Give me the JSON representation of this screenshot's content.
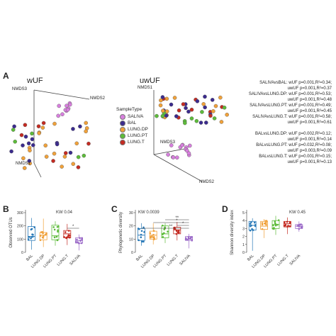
{
  "panel_a": {
    "letter": "A",
    "wuf": {
      "title": "wUF",
      "axis1": "NMDS1",
      "axis2": "NMDS2",
      "axis3": "NMDS3"
    },
    "uwuf": {
      "title": "uwUF",
      "axis1": "NMDS1",
      "axis2": "NMDS2",
      "axis3": "NMDS3"
    },
    "legend": {
      "title": "SampleType",
      "items": [
        {
          "label": "SALIVA",
          "color": "#d77fdd"
        },
        {
          "label": "BAL",
          "color": "#3b2b8e"
        },
        {
          "label": "LUNG.DP",
          "color": "#f0a13a"
        },
        {
          "label": "LUNG.PT",
          "color": "#5dbb3a"
        },
        {
          "label": "LUNG.T",
          "color": "#c42b22"
        }
      ]
    },
    "stats": [
      "SALIVAvsBAL: wUF p=0.001,R²=0.34;",
      "uwUF p=0.001,R²=0.37",
      "SALIVAvsLUNG.DP: wUF p=0.001,R²=0.53;",
      "uwUF p=0.001,R²=0.48",
      "SALIVAvsLUNG.PT: wUF p=0.001,R²=0.49;",
      "uwUF p=0.001,R²=0.45",
      "SALIVAvsLUNG.T: wUF p=0.001,R²=0.58;",
      "uwUF p=0.001,R²=0.61",
      "",
      "BALvsLUNG.DP: wUF p=0.002,R²=0.12;",
      "uwUF p=0.001,R²=0.14",
      "BALvsLUNG.PT: wUF p=0.032,R²=0.08;",
      "uwUF p=0.003,R²=0.09",
      "BALvsLUNG.T: wUF p=0.001,R²=0.15;",
      "uwUF p=0.001,R²=0.13"
    ]
  },
  "chart_data": [
    {
      "type": "box",
      "panel": "B",
      "ylabel": "Observed OTUs",
      "annotation": "KW 0.04",
      "categories": [
        "BAL",
        "LUNG.DP",
        "LUNG.PT",
        "LUNG.T",
        "SALIVA"
      ],
      "colors": [
        "#2a7ab8",
        "#f0a13a",
        "#5dbb3a",
        "#c42b22",
        "#9b6ac8"
      ],
      "ylim": [
        0,
        300
      ],
      "yticks": [
        0,
        100,
        200,
        300
      ],
      "boxes": [
        {
          "min": 20,
          "q1": 90,
          "median": 120,
          "q3": 195,
          "max": 260
        },
        {
          "min": 40,
          "q1": 95,
          "median": 130,
          "q3": 150,
          "max": 255
        },
        {
          "min": 50,
          "q1": 95,
          "median": 125,
          "q3": 205,
          "max": 235
        },
        {
          "min": 55,
          "q1": 110,
          "median": 140,
          "q3": 165,
          "max": 215
        },
        {
          "min": 15,
          "q1": 70,
          "median": 90,
          "q3": 110,
          "max": 135
        }
      ],
      "brackets": [
        {
          "from": 3,
          "to": 4,
          "label": "*"
        }
      ]
    },
    {
      "type": "box",
      "panel": "C",
      "ylabel": "Phylogenetic diversity",
      "annotation": "KW 0.0039",
      "categories": [
        "BAL",
        "LUNG.DP",
        "LUNG.PT",
        "LUNG.T",
        "SALIVA"
      ],
      "colors": [
        "#2a7ab8",
        "#f0a13a",
        "#5dbb3a",
        "#c42b22",
        "#9b6ac8"
      ],
      "ylim": [
        0,
        30
      ],
      "yticks": [
        0,
        10,
        20,
        30
      ],
      "boxes": [
        {
          "min": 5,
          "q1": 9,
          "median": 13,
          "q3": 18,
          "max": 22
        },
        {
          "min": 6,
          "q1": 10,
          "median": 13,
          "q3": 16,
          "max": 22
        },
        {
          "min": 7,
          "q1": 11,
          "median": 14,
          "q3": 20,
          "max": 22
        },
        {
          "min": 9,
          "q1": 14,
          "median": 17,
          "q3": 19,
          "max": 23
        },
        {
          "min": 3,
          "q1": 9,
          "median": 10,
          "q3": 12,
          "max": 14
        }
      ],
      "brackets": [
        {
          "from": 2,
          "to": 4,
          "label": "**"
        },
        {
          "from": 1,
          "to": 4,
          "label": "*"
        },
        {
          "from": 3,
          "to": 4,
          "label": "*"
        },
        {
          "from": 0,
          "to": 4,
          "label": "**"
        }
      ]
    },
    {
      "type": "box",
      "panel": "D",
      "ylabel": "Shannon diversity index",
      "annotation": "KW 0.45",
      "categories": [
        "BAL",
        "LUNG.DP",
        "LUNG.PT",
        "LUNG.T",
        "SALIVA"
      ],
      "colors": [
        "#2a7ab8",
        "#f0a13a",
        "#5dbb3a",
        "#c42b22",
        "#9b6ac8"
      ],
      "ylim": [
        0,
        5
      ],
      "yticks": [
        0,
        1,
        2,
        3,
        4,
        5
      ],
      "boxes": [
        {
          "min": 0.2,
          "q1": 2.8,
          "median": 3.4,
          "q3": 3.9,
          "max": 4.3
        },
        {
          "min": 1.8,
          "q1": 2.9,
          "median": 3.3,
          "q3": 3.9,
          "max": 4.2
        },
        {
          "min": 2.2,
          "q1": 3.0,
          "median": 3.5,
          "q3": 4.0,
          "max": 4.6
        },
        {
          "min": 2.3,
          "q1": 3.2,
          "median": 3.6,
          "q3": 3.9,
          "max": 4.4
        },
        {
          "min": 2.6,
          "q1": 3.0,
          "median": 3.3,
          "q3": 3.5,
          "max": 3.9
        }
      ],
      "brackets": []
    }
  ]
}
